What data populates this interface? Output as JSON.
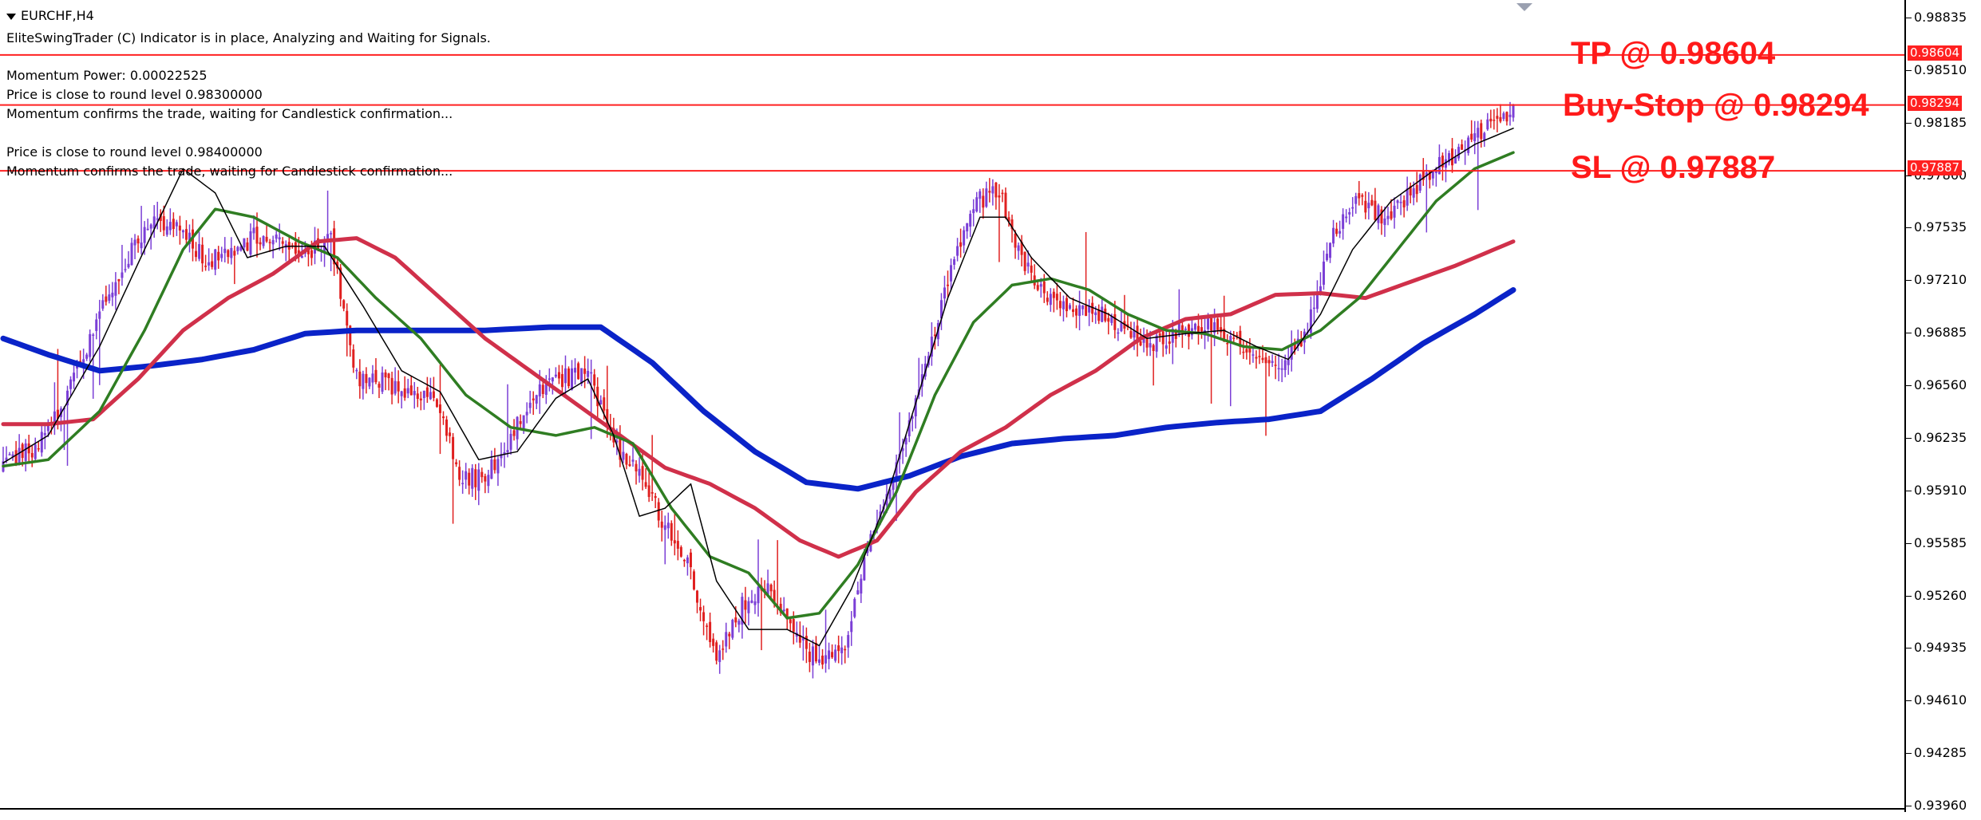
{
  "window": {
    "title": "EURCHF,H4"
  },
  "info_lines": {
    "indicator": "EliteSwingTrader (C) Indicator is in place, Analyzing and Waiting for Signals.",
    "momentum_power": "Momentum Power: 0.00022525",
    "round_level_1": "Price is close to round level 0.98300000",
    "confirm_1": "Momentum confirms the trade, waiting for Candlestick confirmation...",
    "round_level_2": "Price is close to round level 0.98400000",
    "confirm_2": "Momentum confirms the trade, waiting for Candlestick confirmation..."
  },
  "trade_levels": {
    "tp": {
      "label": "TP @ 0.98604",
      "price_tag": "0.98604",
      "value": 0.98604
    },
    "buy_stop": {
      "label": "Buy-Stop @ 0.98294",
      "price_tag": "0.98294",
      "value": 0.98294
    },
    "sl": {
      "label": "SL @ 0.97887",
      "price_tag": "0.97887",
      "value": 0.97887
    }
  },
  "colors": {
    "level_line": "#ff2020",
    "bull_candle": "#7b3fd6",
    "bear_candle": "#e02020",
    "ma_fast": "#000000",
    "ma_green": "#2f7d22",
    "ma_red": "#d0304a",
    "ma_blue": "#0a23c8"
  },
  "chart_data": {
    "type": "candlestick",
    "symbol": "EURCHF",
    "timeframe": "H4",
    "y_axis_ticks": [
      "0.98835",
      "0.98510",
      "0.98185",
      "0.97860",
      "0.97535",
      "0.97210",
      "0.96885",
      "0.96560",
      "0.96235",
      "0.95910",
      "0.95585",
      "0.95260",
      "0.94935",
      "0.94610",
      "0.94285",
      "0.93960"
    ],
    "ylim": [
      0.9396,
      0.98835
    ],
    "close_path": [
      [
        0,
        0.9605
      ],
      [
        10,
        0.9618
      ],
      [
        20,
        0.965
      ],
      [
        30,
        0.97
      ],
      [
        40,
        0.974
      ],
      [
        48,
        0.976
      ],
      [
        56,
        0.975
      ],
      [
        62,
        0.9735
      ],
      [
        70,
        0.9735
      ],
      [
        78,
        0.9748
      ],
      [
        86,
        0.9745
      ],
      [
        94,
        0.9738
      ],
      [
        102,
        0.9745
      ],
      [
        110,
        0.966
      ],
      [
        118,
        0.966
      ],
      [
        126,
        0.965
      ],
      [
        134,
        0.965
      ],
      [
        142,
        0.96
      ],
      [
        150,
        0.9598
      ],
      [
        158,
        0.9625
      ],
      [
        166,
        0.965
      ],
      [
        174,
        0.966
      ],
      [
        182,
        0.9665
      ],
      [
        190,
        0.962
      ],
      [
        198,
        0.96
      ],
      [
        206,
        0.957
      ],
      [
        214,
        0.954
      ],
      [
        222,
        0.949
      ],
      [
        230,
        0.952
      ],
      [
        238,
        0.953
      ],
      [
        246,
        0.95
      ],
      [
        254,
        0.9485
      ],
      [
        262,
        0.9495
      ],
      [
        270,
        0.956
      ],
      [
        278,
        0.9605
      ],
      [
        286,
        0.9665
      ],
      [
        294,
        0.972
      ],
      [
        302,
        0.977
      ],
      [
        310,
        0.9775
      ],
      [
        318,
        0.973
      ],
      [
        326,
        0.971
      ],
      [
        334,
        0.9705
      ],
      [
        342,
        0.97
      ],
      [
        350,
        0.969
      ],
      [
        358,
        0.968
      ],
      [
        366,
        0.969
      ],
      [
        374,
        0.9695
      ],
      [
        382,
        0.9685
      ],
      [
        390,
        0.9675
      ],
      [
        398,
        0.967
      ],
      [
        406,
        0.969
      ],
      [
        414,
        0.975
      ],
      [
        422,
        0.977
      ],
      [
        430,
        0.976
      ],
      [
        438,
        0.9775
      ],
      [
        446,
        0.979
      ],
      [
        454,
        0.98
      ],
      [
        462,
        0.9815
      ],
      [
        470,
        0.9825
      ]
    ],
    "moving_averages": {
      "fast_black": [
        [
          0,
          0.9608
        ],
        [
          14,
          0.9625
        ],
        [
          30,
          0.968
        ],
        [
          44,
          0.974
        ],
        [
          56,
          0.979
        ],
        [
          66,
          0.9775
        ],
        [
          76,
          0.9735
        ],
        [
          88,
          0.9742
        ],
        [
          100,
          0.9742
        ],
        [
          112,
          0.9705
        ],
        [
          124,
          0.9665
        ],
        [
          136,
          0.9652
        ],
        [
          148,
          0.961
        ],
        [
          160,
          0.9615
        ],
        [
          172,
          0.9648
        ],
        [
          182,
          0.966
        ],
        [
          190,
          0.9625
        ],
        [
          198,
          0.9575
        ],
        [
          206,
          0.958
        ],
        [
          214,
          0.9595
        ],
        [
          222,
          0.9535
        ],
        [
          232,
          0.9505
        ],
        [
          244,
          0.9505
        ],
        [
          254,
          0.9495
        ],
        [
          264,
          0.953
        ],
        [
          274,
          0.958
        ],
        [
          284,
          0.9645
        ],
        [
          294,
          0.971
        ],
        [
          304,
          0.976
        ],
        [
          312,
          0.976
        ],
        [
          320,
          0.9735
        ],
        [
          332,
          0.971
        ],
        [
          344,
          0.97
        ],
        [
          356,
          0.9685
        ],
        [
          368,
          0.9688
        ],
        [
          380,
          0.969
        ],
        [
          390,
          0.968
        ],
        [
          400,
          0.9672
        ],
        [
          410,
          0.97
        ],
        [
          420,
          0.974
        ],
        [
          432,
          0.977
        ],
        [
          446,
          0.979
        ],
        [
          458,
          0.9805
        ],
        [
          470,
          0.9815
        ]
      ],
      "green": [
        [
          0,
          0.9606
        ],
        [
          14,
          0.961
        ],
        [
          30,
          0.964
        ],
        [
          44,
          0.969
        ],
        [
          56,
          0.974
        ],
        [
          66,
          0.9765
        ],
        [
          78,
          0.976
        ],
        [
          92,
          0.9745
        ],
        [
          104,
          0.9735
        ],
        [
          116,
          0.971
        ],
        [
          130,
          0.9685
        ],
        [
          144,
          0.965
        ],
        [
          158,
          0.963
        ],
        [
          172,
          0.9625
        ],
        [
          184,
          0.963
        ],
        [
          196,
          0.962
        ],
        [
          208,
          0.958
        ],
        [
          220,
          0.955
        ],
        [
          232,
          0.954
        ],
        [
          244,
          0.9512
        ],
        [
          254,
          0.9515
        ],
        [
          266,
          0.9545
        ],
        [
          278,
          0.959
        ],
        [
          290,
          0.965
        ],
        [
          302,
          0.9695
        ],
        [
          314,
          0.9718
        ],
        [
          326,
          0.9722
        ],
        [
          338,
          0.9715
        ],
        [
          350,
          0.97
        ],
        [
          362,
          0.969
        ],
        [
          374,
          0.9688
        ],
        [
          386,
          0.968
        ],
        [
          398,
          0.9678
        ],
        [
          410,
          0.969
        ],
        [
          422,
          0.971
        ],
        [
          434,
          0.974
        ],
        [
          446,
          0.977
        ],
        [
          458,
          0.979
        ],
        [
          470,
          0.98
        ]
      ],
      "red": [
        [
          0,
          0.9632
        ],
        [
          14,
          0.9632
        ],
        [
          28,
          0.9635
        ],
        [
          42,
          0.966
        ],
        [
          56,
          0.969
        ],
        [
          70,
          0.971
        ],
        [
          84,
          0.9725
        ],
        [
          98,
          0.9745
        ],
        [
          110,
          0.9747
        ],
        [
          122,
          0.9735
        ],
        [
          136,
          0.971
        ],
        [
          150,
          0.9685
        ],
        [
          164,
          0.9665
        ],
        [
          178,
          0.9645
        ],
        [
          192,
          0.9625
        ],
        [
          206,
          0.9605
        ],
        [
          220,
          0.9595
        ],
        [
          234,
          0.958
        ],
        [
          248,
          0.956
        ],
        [
          260,
          0.955
        ],
        [
          272,
          0.956
        ],
        [
          284,
          0.959
        ],
        [
          298,
          0.9615
        ],
        [
          312,
          0.963
        ],
        [
          326,
          0.965
        ],
        [
          340,
          0.9665
        ],
        [
          354,
          0.9685
        ],
        [
          368,
          0.9697
        ],
        [
          382,
          0.97
        ],
        [
          396,
          0.9712
        ],
        [
          410,
          0.9713
        ],
        [
          424,
          0.971
        ],
        [
          438,
          0.972
        ],
        [
          452,
          0.973
        ],
        [
          470,
          0.9745
        ]
      ],
      "blue": [
        [
          0,
          0.9685
        ],
        [
          14,
          0.9675
        ],
        [
          30,
          0.9665
        ],
        [
          46,
          0.9668
        ],
        [
          62,
          0.9672
        ],
        [
          78,
          0.9678
        ],
        [
          94,
          0.9688
        ],
        [
          110,
          0.969
        ],
        [
          130,
          0.969
        ],
        [
          150,
          0.969
        ],
        [
          170,
          0.9692
        ],
        [
          186,
          0.9692
        ],
        [
          202,
          0.967
        ],
        [
          218,
          0.964
        ],
        [
          234,
          0.9615
        ],
        [
          250,
          0.9596
        ],
        [
          266,
          0.9592
        ],
        [
          282,
          0.96
        ],
        [
          298,
          0.9612
        ],
        [
          314,
          0.962
        ],
        [
          330,
          0.9623
        ],
        [
          346,
          0.9625
        ],
        [
          362,
          0.963
        ],
        [
          378,
          0.9633
        ],
        [
          394,
          0.9635
        ],
        [
          410,
          0.964
        ],
        [
          426,
          0.966
        ],
        [
          442,
          0.9682
        ],
        [
          458,
          0.97
        ],
        [
          470,
          0.9715
        ]
      ]
    }
  }
}
